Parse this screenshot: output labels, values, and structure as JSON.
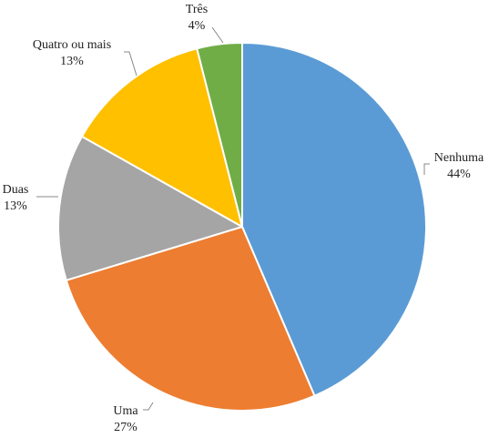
{
  "chart_data": {
    "type": "pie",
    "categories": [
      "Nenhuma",
      "Uma",
      "Duas",
      "Quatro ou mais",
      "Três"
    ],
    "values": [
      44,
      27,
      13,
      13,
      4
    ],
    "labels": [
      "44%",
      "27%",
      "13%",
      "13%",
      "4%"
    ],
    "colors": [
      "#5B9BD5",
      "#ED7D31",
      "#A5A5A5",
      "#FFC000",
      "#70AD47"
    ],
    "start": "12 o'clock",
    "direction": "clockwise",
    "legend": "none",
    "title": ""
  }
}
